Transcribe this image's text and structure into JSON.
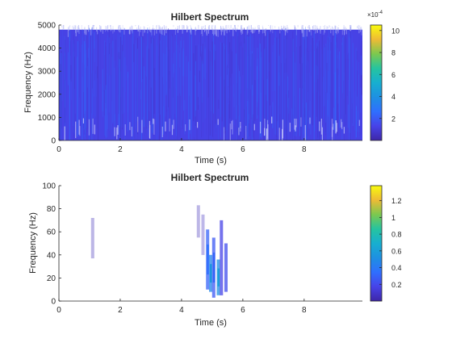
{
  "chart_data": [
    {
      "type": "heatmap",
      "title": "Hilbert Spectrum",
      "xlabel": "Time (s)",
      "ylabel": "Frequency (Hz)",
      "xlim": [
        0,
        9.9
      ],
      "ylim": [
        0,
        5000
      ],
      "x_ticks": [
        0,
        2,
        4,
        6,
        8
      ],
      "y_ticks": [
        0,
        1000,
        2000,
        3000,
        4000,
        5000
      ],
      "colorbar": {
        "multiplier_label": "×10",
        "multiplier_exponent": "-4",
        "ticks": [
          2,
          4,
          6,
          8,
          10
        ],
        "range": [
          0,
          10.5
        ]
      },
      "description_values": {
        "band_low_hz": 0,
        "band_high_hz": 4800,
        "dominant_level": 0.5
      }
    },
    {
      "type": "heatmap",
      "title": "Hilbert Spectrum",
      "xlabel": "Time (s)",
      "ylabel": "Frequency (Hz)",
      "xlim": [
        0,
        9.9
      ],
      "ylim": [
        0,
        100
      ],
      "x_ticks": [
        0,
        2,
        4,
        6,
        8
      ],
      "y_ticks": [
        0,
        20,
        40,
        60,
        80,
        100
      ],
      "colorbar": {
        "ticks": [
          0.2,
          0.4,
          0.6,
          0.8,
          1,
          1.2
        ],
        "range": [
          0,
          1.38
        ]
      },
      "segments": [
        {
          "t": 1.1,
          "f0": 37,
          "f1": 72,
          "v": 0.05
        },
        {
          "t": 4.55,
          "f0": 55,
          "f1": 83,
          "v": 0.05
        },
        {
          "t": 4.7,
          "f0": 40,
          "f1": 75,
          "v": 0.08
        },
        {
          "t": 4.85,
          "f0": 10,
          "f1": 62,
          "v": 0.35
        },
        {
          "t": 4.95,
          "f0": 8,
          "f1": 40,
          "v": 0.55
        },
        {
          "t": 5.05,
          "f0": 3,
          "f1": 55,
          "v": 0.3
        },
        {
          "t": 5.2,
          "f0": 5,
          "f1": 36,
          "v": 0.6
        },
        {
          "t": 5.3,
          "f0": 5,
          "f1": 70,
          "v": 0.2
        },
        {
          "t": 5.45,
          "f0": 8,
          "f1": 50,
          "v": 0.25
        }
      ]
    }
  ]
}
